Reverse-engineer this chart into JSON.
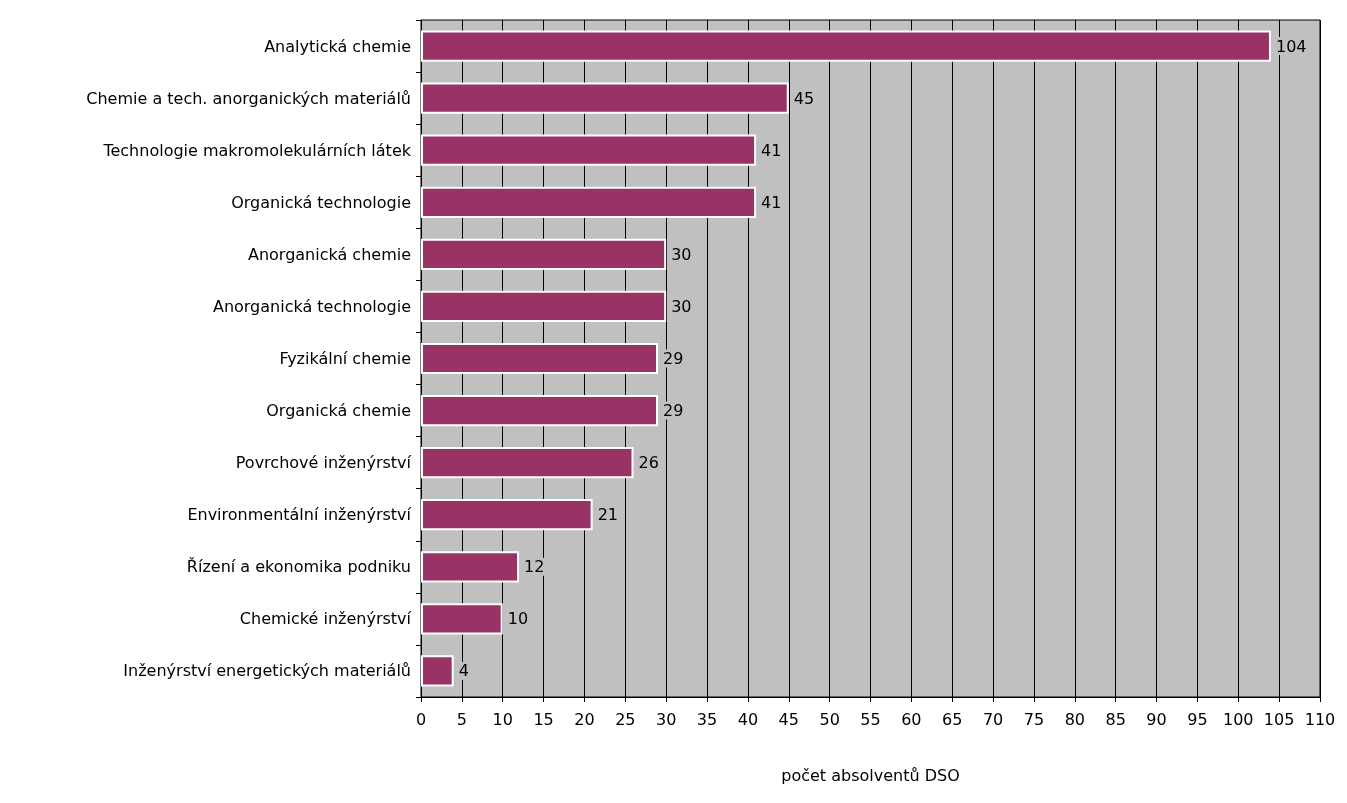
{
  "chart_data": {
    "type": "bar",
    "orientation": "horizontal",
    "xlabel": "počet absolventů DSO",
    "categories": [
      "Analytická chemie",
      "Chemie a tech. anorganických materiálů",
      "Technologie makromolekulárních látek",
      "Organická technologie",
      "Anorganická chemie",
      "Anorganická technologie",
      "Fyzikální chemie",
      "Organická chemie",
      "Povrchové inženýrství",
      "Environmentální inženýrství",
      "Řízení a ekonomika podniku",
      "Chemické inženýrství",
      "Inženýrství energetických materiálů"
    ],
    "values": [
      104,
      45,
      41,
      41,
      30,
      30,
      29,
      29,
      26,
      21,
      12,
      10,
      4
    ],
    "color": "#993366",
    "xlim": [
      0,
      110
    ],
    "xticks": [
      0,
      5,
      10,
      15,
      20,
      25,
      30,
      35,
      40,
      45,
      50,
      55,
      60,
      65,
      70,
      75,
      80,
      85,
      90,
      95,
      100,
      105,
      110
    ],
    "grid": "x",
    "data_labels": true
  }
}
